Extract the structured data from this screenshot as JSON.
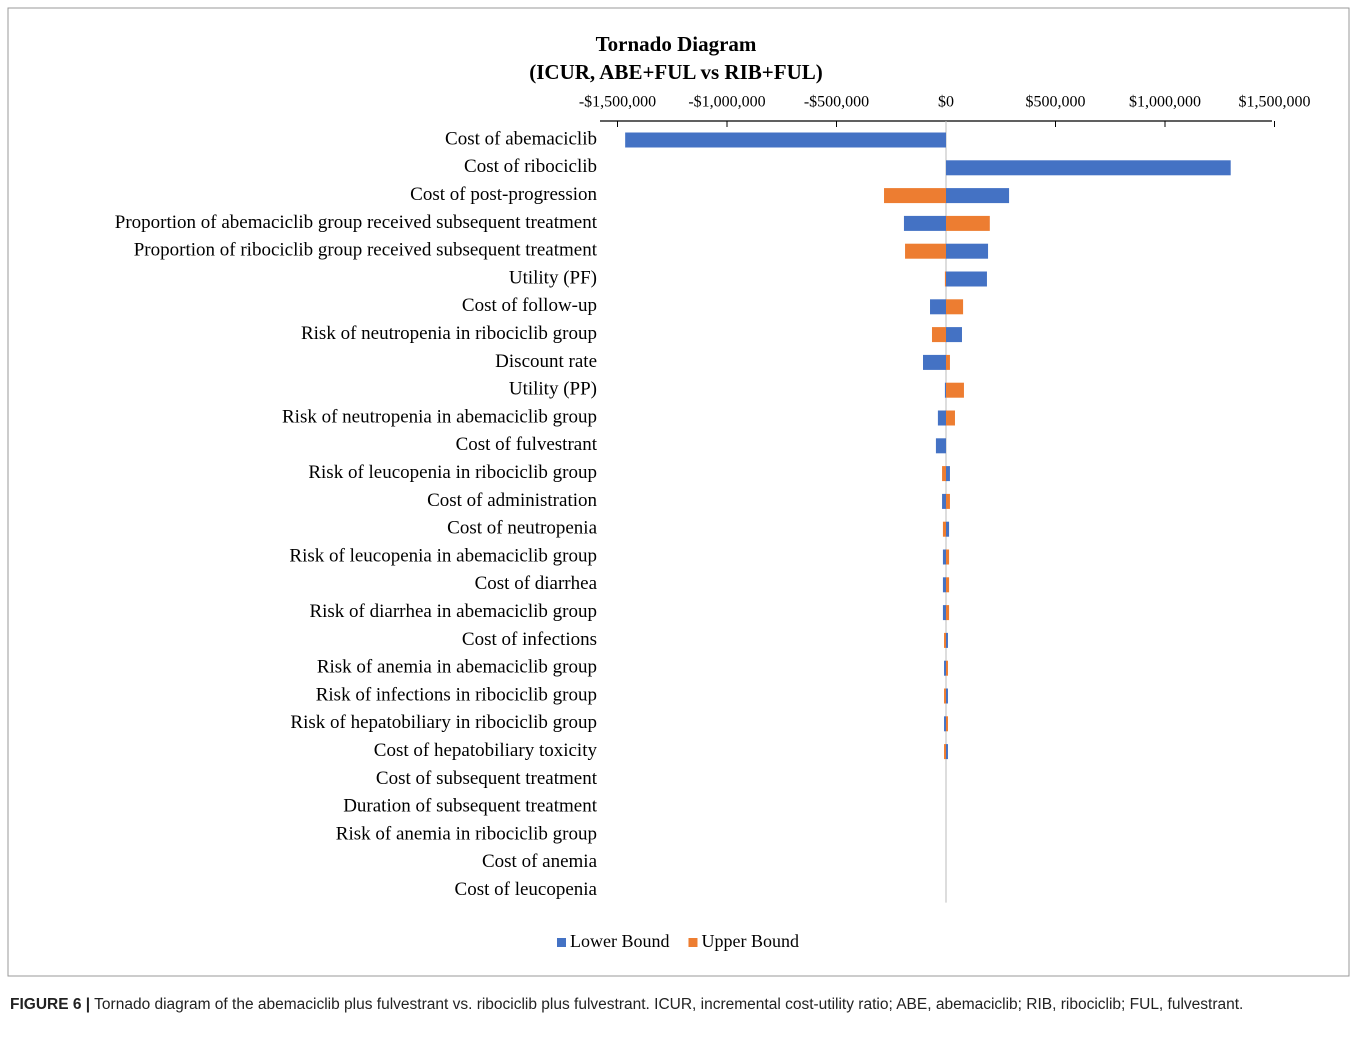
{
  "chart_data": {
    "type": "bar",
    "orientation": "horizontal",
    "title": "Tornado Diagram",
    "subtitle": "(ICUR, ABE+FUL vs RIB+FUL)",
    "categories": [
      "Cost of abemaciclib",
      "Cost of ribociclib",
      "Cost of post-progression",
      "Proportion of abemaciclib group received subsequent treatment",
      "Proportion of ribociclib group received subsequent treatment",
      "Utility (PF)",
      "Cost of follow-up",
      "Risk of neutropenia  in ribociclib group",
      "Discount rate",
      "Utility (PP)",
      "Risk of neutropenia in abemaciclib group",
      "Cost of fulvestrant",
      "Risk of leucopenia in ribociclib group",
      "Cost of administration",
      "Cost of neutropenia",
      "Risk of leucopenia in abemaciclib group",
      "Cost of diarrhea",
      "Risk of diarrhea in abemaciclib group",
      "Cost of infections",
      "Risk of anemia in abemaciclib group",
      "Risk of infections in ribociclib group",
      "Risk of hepatobiliary in ribociclib group",
      "Cost of hepatobiliary toxicity",
      "Cost of subsequent treatment",
      "Duration of subsequent treatment",
      "Risk of anemia in ribociclib group",
      "Cost of anemia",
      "Cost of leucopenia"
    ],
    "series": [
      {
        "name": "Lower Bound",
        "color": "#4472c4",
        "values": [
          -1465000,
          1300000,
          288000,
          -192000,
          192000,
          187000,
          -73000,
          73000,
          -105000,
          -5000,
          -37000,
          -46000,
          18000,
          -18000,
          14000,
          -14000,
          -14000,
          -14000,
          9000,
          -9000,
          9000,
          -9000,
          9000,
          0,
          0,
          0,
          0,
          0
        ]
      },
      {
        "name": "Upper Bound",
        "color": "#ed7d31",
        "values": [
          0,
          0,
          -283000,
          200000,
          -187000,
          -5000,
          78000,
          -64000,
          18000,
          82000,
          41000,
          0,
          -18000,
          18000,
          -14000,
          14000,
          14000,
          14000,
          -9000,
          9000,
          -9000,
          9000,
          -9000,
          0,
          0,
          0,
          0,
          0
        ]
      }
    ],
    "xlim": [
      -1500000,
      1500000
    ],
    "xticks": [
      {
        "value": -1500000,
        "label": "-$1,500,000"
      },
      {
        "value": -1000000,
        "label": "-$1,000,000"
      },
      {
        "value": -500000,
        "label": "-$500,000"
      },
      {
        "value": 0,
        "label": "$0"
      },
      {
        "value": 500000,
        "label": "$500,000"
      },
      {
        "value": 1000000,
        "label": "$1,000,000"
      },
      {
        "value": 1500000,
        "label": "$1,500,000"
      }
    ],
    "legend": "bottom",
    "caption_label": "FIGURE 6 |",
    "caption": "Tornado diagram of the abemaciclib plus fulvestrant vs. ribociclib plus fulvestrant. ICUR, incremental cost-utility ratio; ABE, abemaciclib; RIB, ribociclib; FUL, fulvestrant."
  }
}
